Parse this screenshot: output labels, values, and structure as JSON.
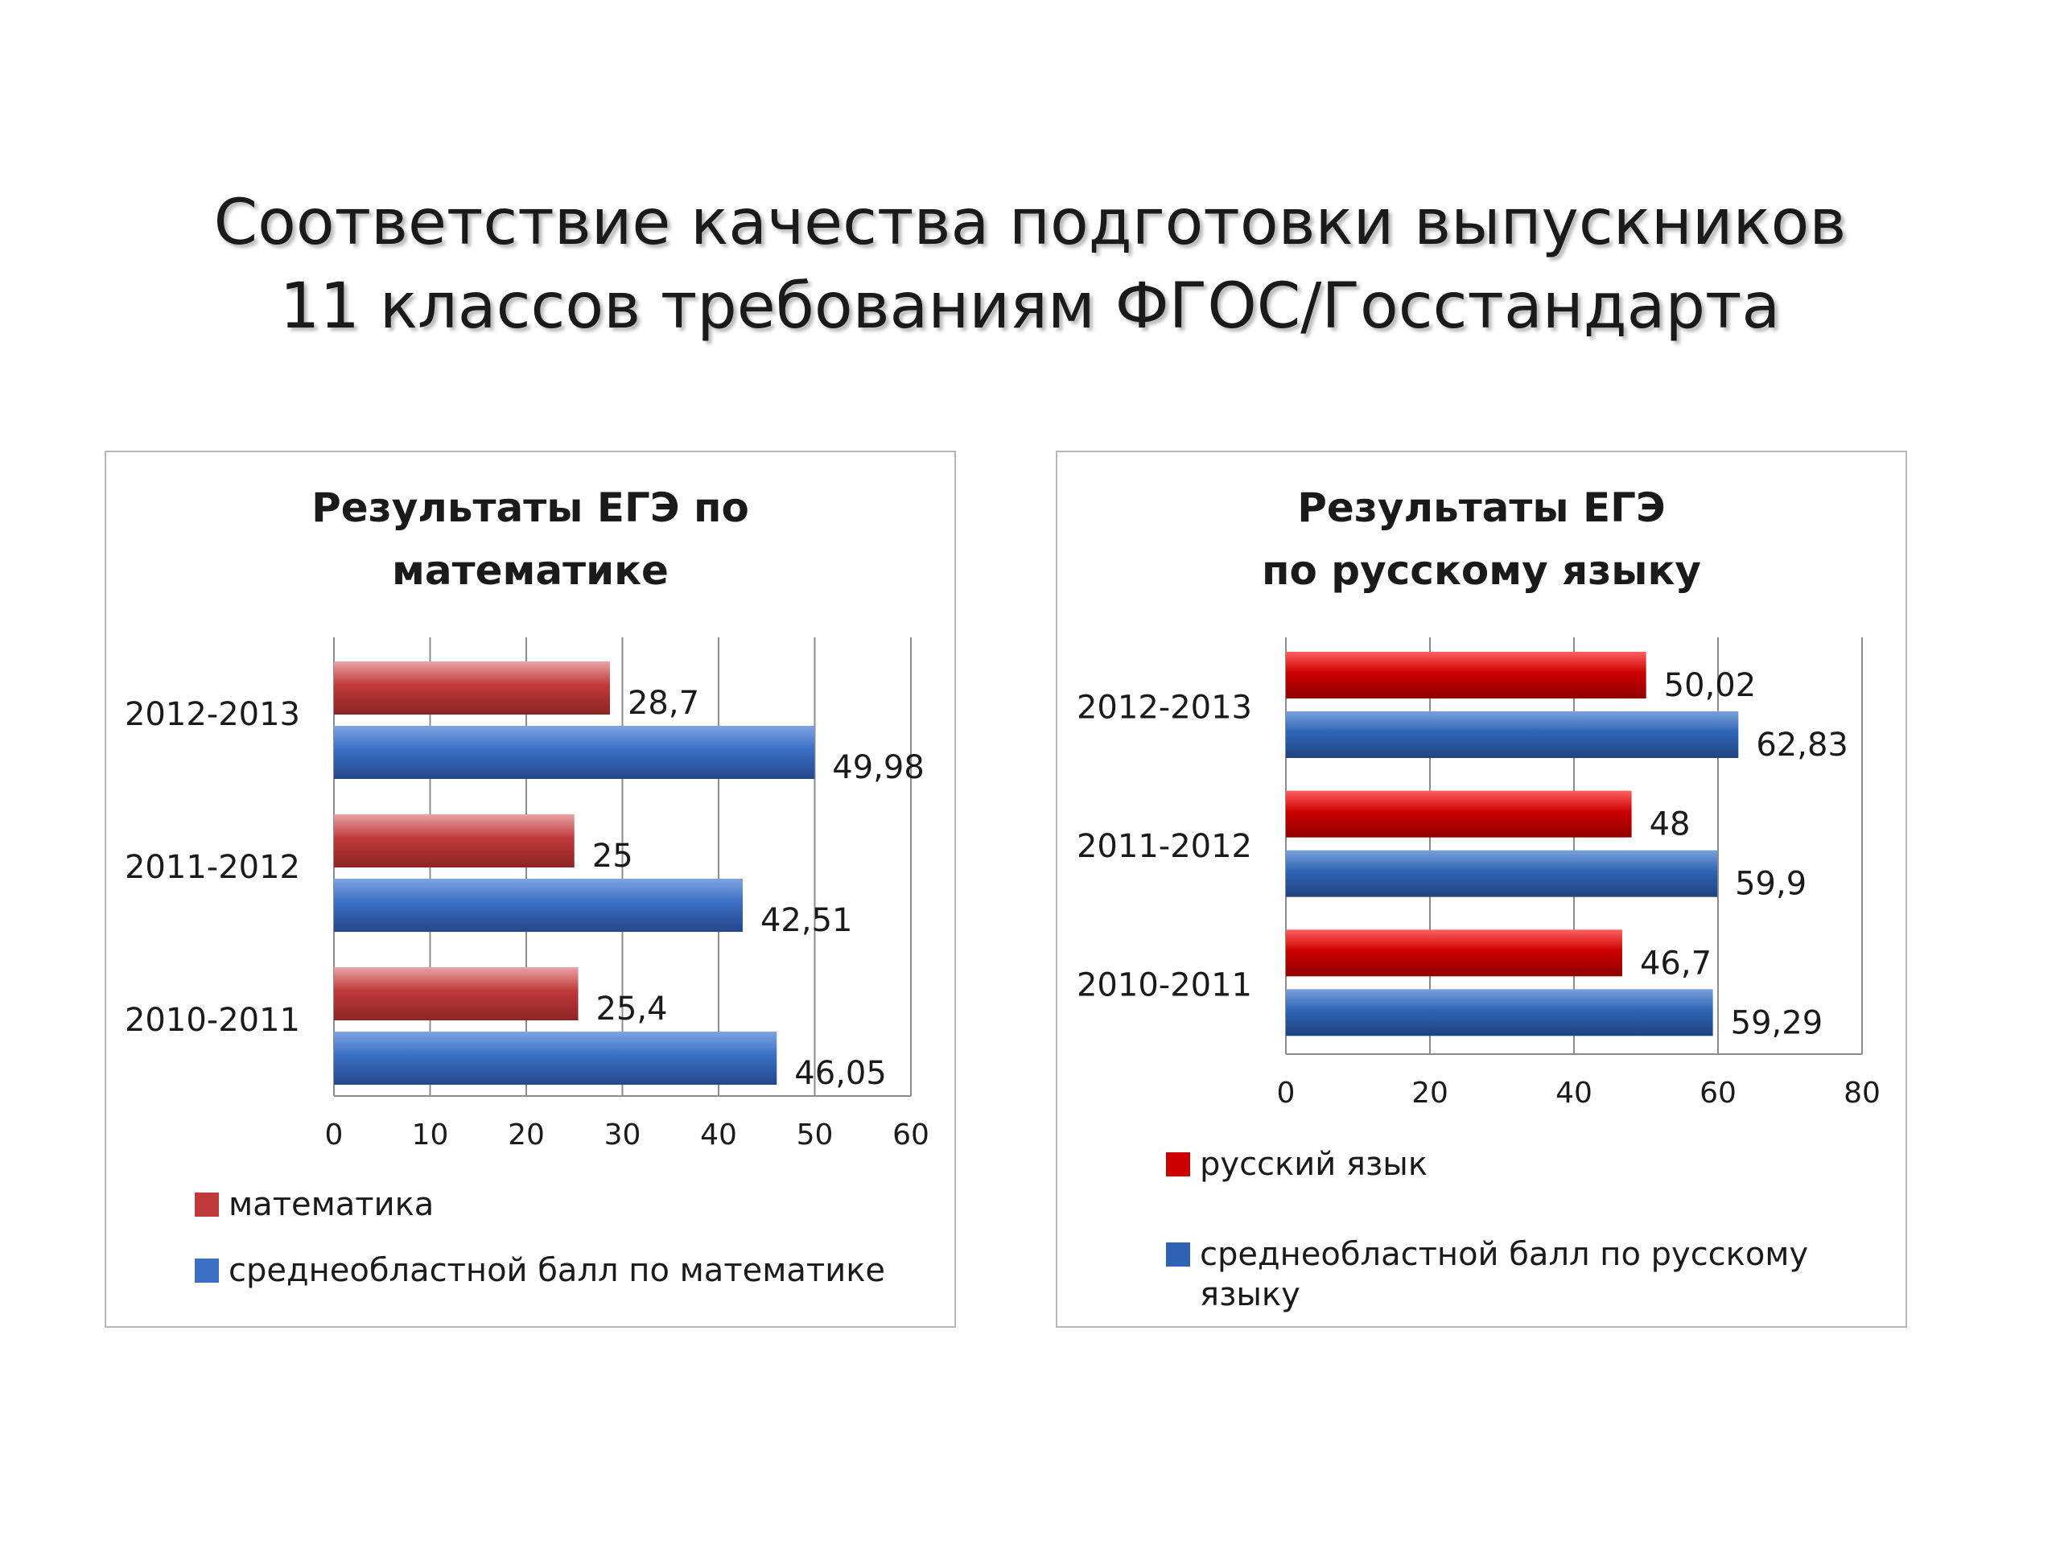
{
  "slide": {
    "title_lines": [
      "Соответствие качества подготовки выпускников",
      "11 классов требованиям ФГОС/Госстандарта"
    ]
  },
  "colors": {
    "red_series": "#c0393b",
    "blue_series": "#3a6fc4",
    "red_series_2": "#cc0000",
    "blue_series_2": "#2f64b4"
  },
  "chart_data": [
    {
      "type": "bar",
      "orientation": "horizontal",
      "title_lines": [
        "Результаты ЕГЭ по",
        "математике"
      ],
      "categories": [
        "2012-2013",
        "2011-2012",
        "2010-2011"
      ],
      "series": [
        {
          "name": "математика",
          "values": [
            28.7,
            25,
            25.4
          ],
          "labels": [
            "28,7",
            "25",
            "25,4"
          ]
        },
        {
          "name": "среднеобластной балл по математике",
          "values": [
            49.98,
            42.51,
            46.05
          ],
          "labels": [
            "49,98",
            "42,51",
            "46,05"
          ]
        }
      ],
      "xlim": [
        0,
        60
      ],
      "xticks": [
        "0",
        "10",
        "20",
        "30",
        "40",
        "50",
        "60"
      ],
      "grid": true,
      "legend": "bottom"
    },
    {
      "type": "bar",
      "orientation": "horizontal",
      "title_lines": [
        "Результаты ЕГЭ",
        "по русскому языку"
      ],
      "categories": [
        "2012-2013",
        "2011-2012",
        "2010-2011"
      ],
      "series": [
        {
          "name": "русский язык",
          "values": [
            50.02,
            48,
            46.7
          ],
          "labels": [
            "50,02",
            "48",
            "46,7"
          ]
        },
        {
          "name": "среднеобластной балл по русскому языку",
          "values": [
            62.83,
            59.9,
            59.29
          ],
          "labels": [
            "62,83",
            "59,9",
            "59,29"
          ]
        }
      ],
      "xlim": [
        0,
        80
      ],
      "xticks": [
        "0",
        "20",
        "40",
        "60",
        "80"
      ],
      "grid": true,
      "legend": "bottom"
    }
  ]
}
